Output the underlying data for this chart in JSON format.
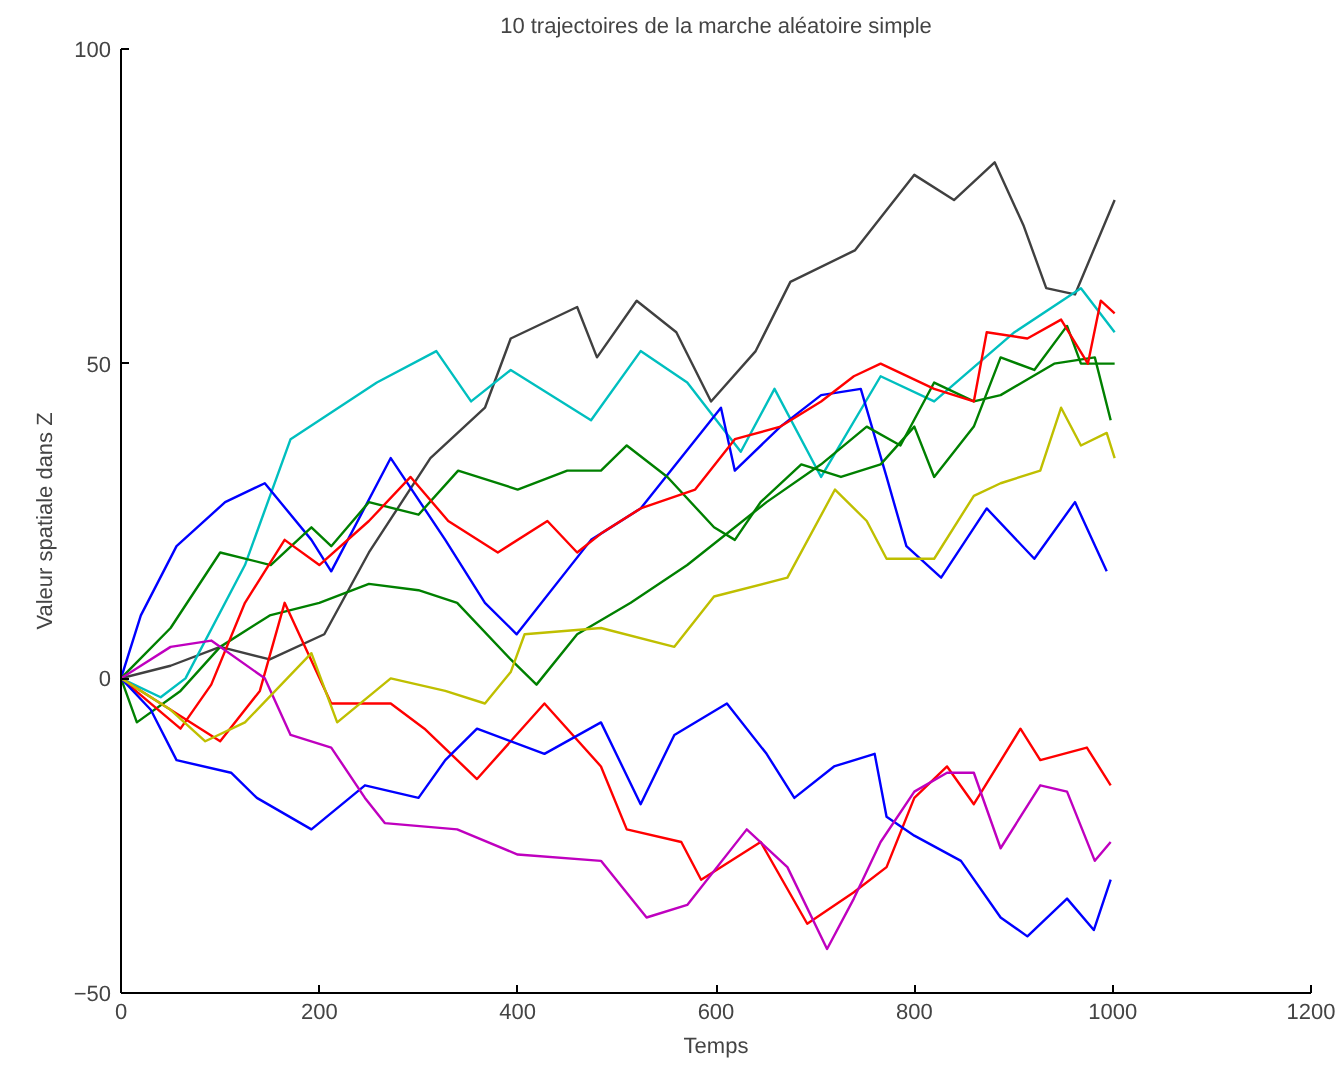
{
  "chart_data": {
    "type": "line",
    "title": "10 trajectoires de la marche aléatoire simple",
    "xlabel": "Temps",
    "ylabel": "Valeur spatiale dans Z",
    "xlim": [
      0,
      1200
    ],
    "ylim": [
      -50,
      100
    ],
    "xticks": [
      0,
      200,
      400,
      600,
      800,
      1000,
      1200
    ],
    "yticks": [
      -50,
      0,
      50,
      100
    ],
    "grid": false,
    "marker": "none",
    "line_style": "solid",
    "series": [
      {
        "color": "#404040",
        "x": [
          0,
          50,
          100,
          150,
          205,
          250,
          312,
          367,
          393,
          460,
          480,
          520,
          560,
          595,
          640,
          675,
          740,
          800,
          840,
          881,
          910,
          933,
          962,
          1002
        ],
        "values": [
          0,
          2,
          5,
          3,
          7,
          20,
          35,
          43,
          54,
          59,
          51,
          60,
          55,
          44,
          52,
          63,
          68,
          80,
          76,
          82,
          72,
          62,
          61,
          76
        ]
      },
      {
        "color": "#00bfbf",
        "x": [
          0,
          40,
          65,
          125,
          171,
          258,
          318,
          353,
          393,
          474,
          524,
          571,
          625,
          659,
          706,
          766,
          820,
          901,
          968,
          1002
        ],
        "values": [
          0,
          -3,
          0,
          18,
          38,
          47,
          52,
          44,
          49,
          41,
          52,
          47,
          36,
          46,
          32,
          48,
          44,
          55,
          62,
          55
        ]
      },
      {
        "color": "#0000ff",
        "x": [
          0,
          20,
          56,
          105,
          145,
          192,
          212,
          272,
          327,
          367,
          399,
          474,
          524,
          605,
          619,
          665,
          706,
          746,
          772,
          792,
          827,
          873,
          921,
          962,
          994
        ],
        "values": [
          0,
          10,
          21,
          28,
          31,
          22,
          17,
          35,
          22,
          12,
          7,
          22,
          27,
          43,
          33,
          40,
          45,
          46,
          32,
          21,
          16,
          27,
          19,
          28,
          17
        ]
      },
      {
        "color": "#008000",
        "x": [
          0,
          50,
          100,
          151,
          192,
          212,
          250,
          300,
          340,
          400,
          450,
          484,
          510,
          551,
          598,
          619,
          645,
          686,
          726,
          766,
          800,
          820,
          860,
          887,
          921,
          954,
          968,
          1002
        ],
        "values": [
          0,
          8,
          20,
          18,
          24,
          21,
          28,
          26,
          33,
          30,
          33,
          33,
          37,
          32,
          24,
          22,
          28,
          34,
          32,
          34,
          40,
          32,
          40,
          51,
          49,
          56,
          50,
          50
        ]
      },
      {
        "color": "#008000",
        "x": [
          0,
          16,
          60,
          100,
          150,
          200,
          250,
          300,
          339,
          393,
          419,
          460,
          514,
          571,
          651,
          706,
          752,
          786,
          820,
          860,
          887,
          941,
          982,
          998
        ],
        "values": [
          0,
          -7,
          -2,
          5,
          10,
          12,
          15,
          14,
          12,
          3,
          -1,
          7,
          12,
          18,
          28,
          34,
          40,
          37,
          47,
          44,
          45,
          50,
          51,
          41
        ]
      },
      {
        "color": "#ff0000",
        "x": [
          0,
          60,
          91,
          125,
          165,
          200,
          250,
          292,
          330,
          380,
          430,
          460,
          484,
          524,
          579,
          619,
          665,
          706,
          739,
          766,
          820,
          860,
          873,
          914,
          948,
          975,
          988,
          1002
        ],
        "values": [
          0,
          -8,
          -1,
          12,
          22,
          18,
          25,
          32,
          25,
          20,
          25,
          20,
          23,
          27,
          30,
          38,
          40,
          44,
          48,
          50,
          46,
          44,
          55,
          54,
          57,
          50,
          60,
          58
        ]
      },
      {
        "color": "#ff0000",
        "x": [
          0,
          50,
          100,
          140,
          165,
          212,
          272,
          306,
          359,
          427,
          484,
          510,
          565,
          585,
          645,
          692,
          739,
          772,
          800,
          833,
          860,
          907,
          927,
          974,
          998
        ],
        "values": [
          0,
          -5,
          -10,
          -2,
          12,
          -4,
          -4,
          -8,
          -16,
          -4,
          -14,
          -24,
          -26,
          -32,
          -26,
          -39,
          -34,
          -30,
          -19,
          -14,
          -20,
          -8,
          -13,
          -11,
          -17
        ]
      },
      {
        "color": "#0000ff",
        "x": [
          0,
          30,
          56,
          111,
          137,
          192,
          246,
          300,
          327,
          359,
          427,
          484,
          524,
          558,
          611,
          651,
          679,
          719,
          760,
          772,
          800,
          847,
          887,
          914,
          954,
          981,
          998
        ],
        "values": [
          0,
          -5,
          -13,
          -15,
          -19,
          -24,
          -17,
          -19,
          -13,
          -8,
          -12,
          -7,
          -20,
          -9,
          -4,
          -12,
          -19,
          -14,
          -12,
          -22,
          -25,
          -29,
          -38,
          -41,
          -35,
          -40,
          -32
        ]
      },
      {
        "color": "#bf00bf",
        "x": [
          0,
          50,
          91,
          145,
          171,
          212,
          246,
          266,
          339,
          400,
          484,
          530,
          571,
          631,
          672,
          712,
          739,
          766,
          800,
          833,
          860,
          887,
          927,
          954,
          982,
          998
        ],
        "values": [
          0,
          5,
          6,
          0,
          -9,
          -11,
          -19,
          -23,
          -24,
          -28,
          -29,
          -38,
          -36,
          -24,
          -30,
          -43,
          -35,
          -26,
          -18,
          -15,
          -15,
          -27,
          -17,
          -18,
          -29,
          -26
        ]
      },
      {
        "color": "#bfbf00",
        "x": [
          0,
          50,
          85,
          125,
          192,
          218,
          272,
          327,
          367,
          393,
          407,
          484,
          558,
          598,
          672,
          720,
          752,
          772,
          820,
          860,
          887,
          927,
          948,
          968,
          994,
          1002
        ],
        "values": [
          0,
          -5,
          -10,
          -7,
          4,
          -7,
          0,
          -2,
          -4,
          1,
          7,
          8,
          5,
          13,
          16,
          30,
          25,
          19,
          19,
          29,
          31,
          33,
          43,
          37,
          39,
          35
        ]
      }
    ]
  }
}
